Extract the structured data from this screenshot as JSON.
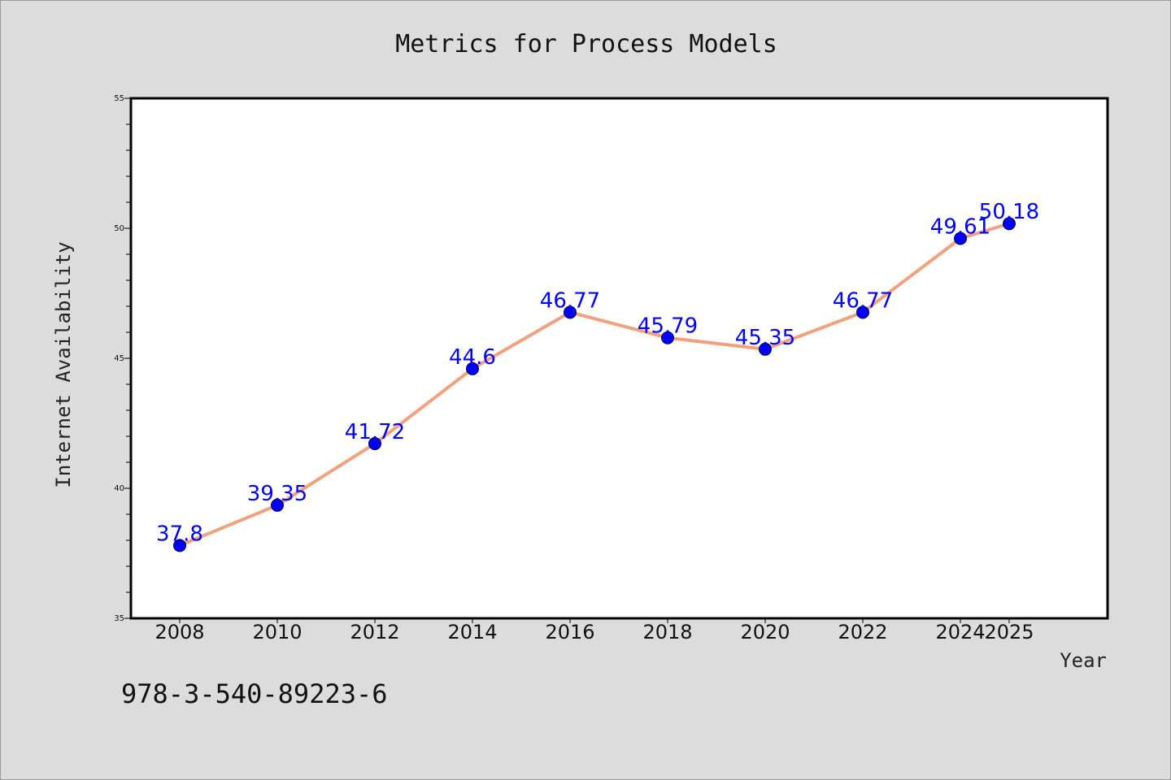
{
  "chart_data": {
    "type": "line",
    "title": "Metrics for Process Models",
    "xlabel": "Year",
    "ylabel": "Internet Availability",
    "categories": [
      "2008",
      "2010",
      "2012",
      "2014",
      "2016",
      "2018",
      "2020",
      "2022",
      "2024",
      "2025"
    ],
    "values": [
      37.8,
      39.35,
      41.72,
      44.6,
      46.77,
      45.79,
      45.35,
      46.77,
      49.61,
      50.18
    ],
    "data_labels": [
      "37.8",
      "39.35",
      "41.72",
      "44.6",
      "46.77",
      "45.79",
      "45.35",
      "46.77",
      "49.61",
      "50.18"
    ],
    "ylim": [
      35,
      55
    ],
    "yticks": [
      35,
      40,
      45,
      50,
      55
    ],
    "grid": false,
    "legend": "none",
    "line_color": "#f4a07c",
    "marker_color": "#0000ff",
    "label_color": "#0000ff"
  },
  "footnote": "978-3-540-89223-6"
}
